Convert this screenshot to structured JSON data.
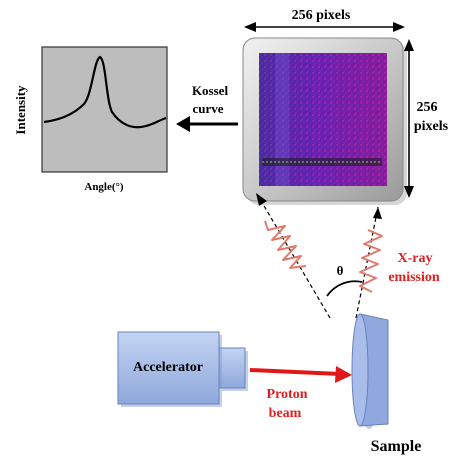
{
  "labels": {
    "top_width": "256 pixels",
    "right_height_line1": "256",
    "right_height_line2": "pixels",
    "kossel_line1": "Kossel",
    "kossel_line2": "curve",
    "intensity": "Intensity",
    "angle": "Angle(°)",
    "theta": "θ",
    "xray_line1": "X-ray",
    "xray_line2": "emission",
    "accelerator": "Accelerator",
    "proton_line1": "Proton",
    "proton_line2": "beam",
    "sample": "Sample"
  },
  "colors": {
    "detector_frame": "#c9c9c9",
    "detector_face": "#5a1fa8",
    "plot_bg": "#bdbdbd",
    "accelerator_body": "#a9bfe6",
    "sample_face": "#8fa9de",
    "xray_text": "#e02020",
    "proton_beam": "#e01818",
    "wave": "#e07a6a",
    "ink": "#000000"
  },
  "icons": {
    "detector": "pixel-detector-icon",
    "accelerator": "accelerator-icon",
    "sample": "sample-disk-icon"
  }
}
